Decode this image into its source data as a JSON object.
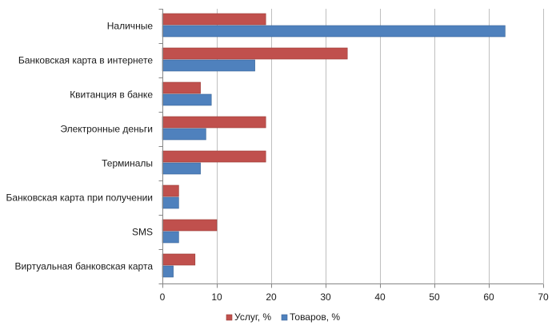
{
  "chart_data": {
    "type": "bar",
    "orientation": "horizontal",
    "title": "",
    "xlabel": "",
    "ylabel": "",
    "categories": [
      "Наличные",
      "Банковская карта в интернете",
      "Квитанция в банке",
      "Электронные  деньги",
      "Терминалы",
      "Банковская карта при получении",
      "SMS",
      "Виртуальная банковская карта"
    ],
    "series": [
      {
        "name": "Услуг, %",
        "color": "#c0504d",
        "stroke": "#9b3b38",
        "values": [
          19,
          34,
          7,
          19,
          19,
          3,
          10,
          6
        ]
      },
      {
        "name": "Товаров, %",
        "color": "#4f81bd",
        "stroke": "#3a6597",
        "values": [
          63,
          17,
          9,
          8,
          7,
          3,
          3,
          2
        ]
      }
    ],
    "xlim": [
      0,
      70
    ],
    "xticks": [
      0,
      10,
      20,
      30,
      40,
      50,
      60,
      70
    ],
    "grid": true,
    "legend_position": "bottom"
  }
}
